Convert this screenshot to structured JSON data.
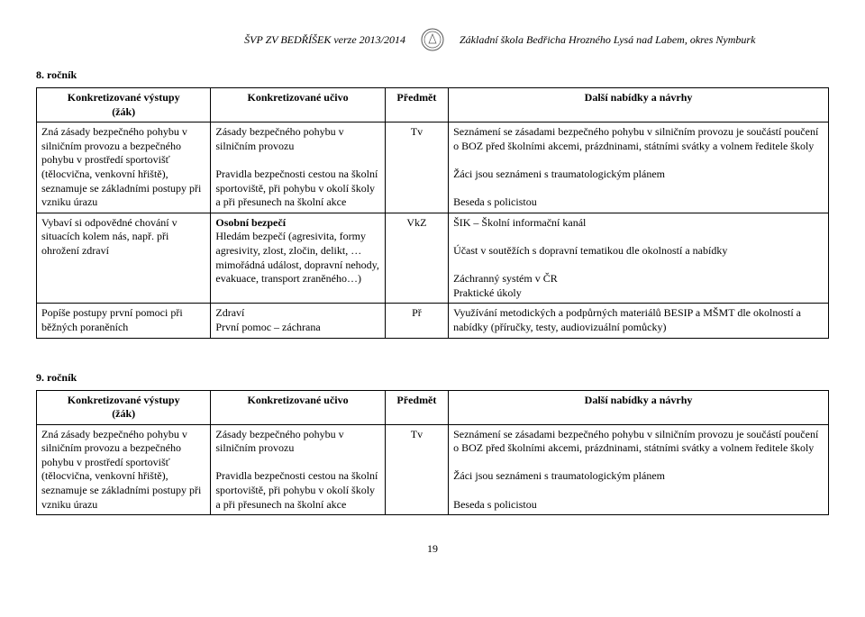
{
  "header": {
    "left": "ŠVP ZV BEDŘÍŠEK verze 2013/2014",
    "right": "Základní škola Bedřicha Hrozného Lysá nad Labem, okres Nymburk"
  },
  "sections": [
    {
      "title": "8. ročník",
      "cols": {
        "c1": "Konkretizované výstupy\n(žák)",
        "c2": "Konkretizované učivo",
        "c3": "Předmět",
        "c4": "Další nabídky a návrhy"
      },
      "rows": [
        {
          "c1": "Zná zásady bezpečného pohybu v silničním provozu a bezpečného pohybu v prostředí sportovišť (tělocvična, venkovní hřiště), seznamuje se základními postupy při vzniku úrazu",
          "c2": "Zásady bezpečného pohybu v silničním provozu\n\nPravidla bezpečnosti cestou na školní sportoviště, při pohybu v okolí školy a při přesunech na školní akce",
          "c3": "Tv",
          "c4": "Seznámení se zásadami bezpečného pohybu v silničním provozu je součástí poučení o BOZ před školními akcemi, prázdninami, státními svátky a volnem ředitele školy\n\nŽáci jsou seznámeni s traumatologickým plánem\n\nBeseda s policistou"
        },
        {
          "c1": "Vybaví si odpovědné chování v situacích kolem nás, např. při ohrožení zdraví",
          "c2_html": "<b>Osobní bezpečí</b><br>Hledám bezpečí (agresivita, formy agresivity, zlost, zločin, delikt, … mimořádná událost, dopravní nehody, evakuace, transport zraněného…)",
          "c3": "VkZ",
          "c4": "ŠIK – Školní informační kanál\n\nÚčast v soutěžích s dopravní tematikou dle okolností a nabídky\n\nZáchranný systém v ČR\nPraktické úkoly"
        },
        {
          "c1": "Popíše postupy první pomoci při běžných poraněních",
          "c2": "Zdraví\nPrvní pomoc – záchrana",
          "c3": "Př",
          "c4": "Využívání metodických a podpůrných materiálů BESIP a MŠMT dle okolností a nabídky (příručky, testy, audiovizuální pomůcky)"
        }
      ]
    },
    {
      "title": "9. ročník",
      "cols": {
        "c1": "Konkretizované výstupy\n(žák)",
        "c2": "Konkretizované učivo",
        "c3": "Předmět",
        "c4": "Další nabídky a návrhy"
      },
      "rows": [
        {
          "c1": "Zná zásady bezpečného pohybu v silničním provozu a bezpečného pohybu v prostředí sportovišť (tělocvična, venkovní hřiště), seznamuje se základními postupy při vzniku úrazu",
          "c2": "Zásady bezpečného pohybu v silničním provozu\n\nPravidla bezpečnosti cestou na školní sportoviště, při pohybu v okolí školy a při přesunech na školní akce",
          "c3": "Tv",
          "c4": "Seznámení se zásadami bezpečného pohybu v silničním provozu je součástí poučení o BOZ před školními akcemi, prázdninami, státními svátky a volnem ředitele školy\n\nŽáci jsou seznámeni s traumatologickým plánem\n\nBeseda s policistou"
        }
      ]
    }
  ],
  "page_number": "19"
}
